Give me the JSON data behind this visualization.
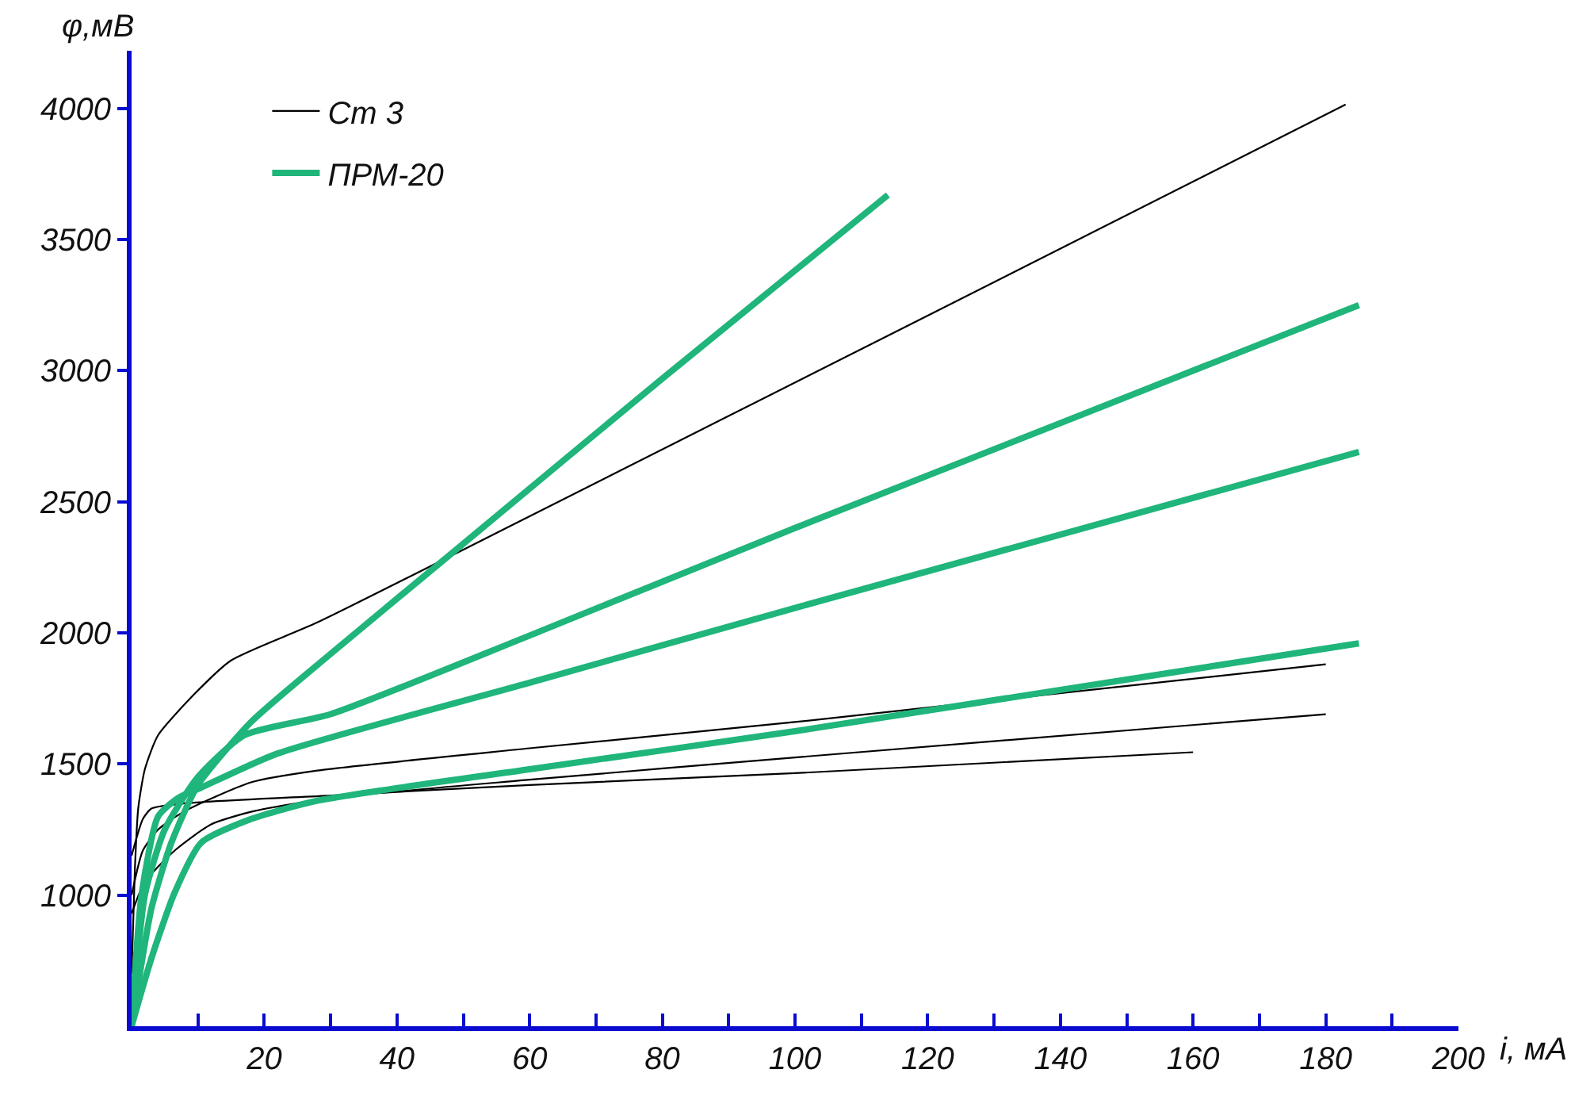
{
  "chart_data": {
    "type": "line",
    "xlabel": "i, мА",
    "ylabel": "φ,мВ",
    "xlim": [
      0,
      200
    ],
    "ylim": [
      500,
      4220
    ],
    "xticks": [
      {
        "value": 10,
        "label": null
      },
      20,
      {
        "value": 30,
        "label": null
      },
      40,
      {
        "value": 50,
        "label": null
      },
      60,
      {
        "value": 70,
        "label": null
      },
      80,
      {
        "value": 90,
        "label": null
      },
      100,
      {
        "value": 110,
        "label": null
      },
      120,
      {
        "value": 130,
        "label": null
      },
      140,
      {
        "value": 150,
        "label": null
      },
      160,
      {
        "value": 170,
        "label": null
      },
      180,
      {
        "value": 190,
        "label": null
      },
      200
    ],
    "yticks": [
      1000,
      1500,
      2000,
      2500,
      3000,
      3500,
      4000
    ],
    "legend": "top left",
    "marker": "none",
    "line_style": "solid",
    "series": [
      {
        "name": "Ст 3",
        "color": "#000000",
        "x": [
          0,
          0.5,
          1,
          2,
          4,
          9.6,
          15,
          28,
          60,
          120,
          183
        ],
        "values": [
          700,
          1100,
          1330,
          1480,
          1610,
          1770,
          1895,
          2040,
          2445,
          3210,
          4015
        ]
      },
      {
        "color": "#000000",
        "x": [
          0,
          1.7,
          4,
          8,
          18,
          28,
          60,
          100,
          180
        ],
        "values": [
          1000,
          1170,
          1250,
          1320,
          1430,
          1475,
          1560,
          1660,
          1880
        ]
      },
      {
        "color": "#000000",
        "x": [
          0,
          2,
          6.5,
          12,
          18.4,
          30,
          60,
          100,
          180
        ],
        "values": [
          930,
          1050,
          1170,
          1270,
          1320,
          1370,
          1440,
          1525,
          1690
        ]
      },
      {
        "color": "#000000",
        "x": [
          0,
          1.7,
          3,
          8,
          30,
          60,
          100,
          160
        ],
        "values": [
          1150,
          1290,
          1330,
          1350,
          1380,
          1420,
          1465,
          1545
        ]
      },
      {
        "name": "ПРМ-20",
        "color": "#1fb57b",
        "x": [
          0,
          3,
          6,
          10,
          18,
          30,
          50,
          80,
          114
        ],
        "values": [
          500,
          950,
          1200,
          1420,
          1660,
          1920,
          2340,
          2970,
          3670
        ]
      },
      {
        "color": "#1fb57b",
        "x": [
          0,
          2,
          5,
          10,
          17,
          30,
          60,
          100,
          185
        ],
        "values": [
          500,
          1000,
          1250,
          1450,
          1610,
          1690,
          1990,
          2400,
          3250
        ]
      },
      {
        "color": "#1fb57b",
        "x": [
          0,
          1.5,
          4,
          7,
          10.5,
          22,
          60,
          100,
          185
        ],
        "values": [
          500,
          1000,
          1300,
          1370,
          1410,
          1540,
          1810,
          2095,
          2690
        ]
      },
      {
        "color": "#1fb57b",
        "x": [
          0,
          3,
          6.5,
          10.5,
          18,
          28,
          60,
          100,
          185
        ],
        "values": [
          500,
          760,
          1010,
          1200,
          1290,
          1360,
          1480,
          1625,
          1960
        ]
      }
    ]
  }
}
